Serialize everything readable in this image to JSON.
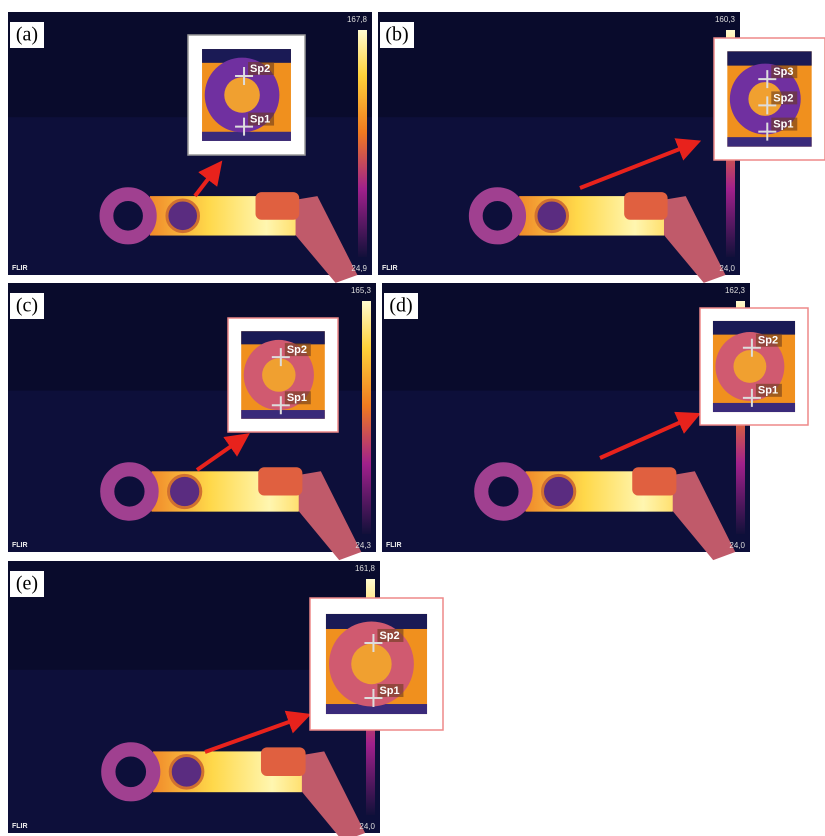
{
  "brand": "FLIR",
  "panels": [
    {
      "label": "(a)",
      "scale_max": "167,8",
      "scale_min": "24,9",
      "spots": [
        "Sp2",
        "Sp1"
      ]
    },
    {
      "label": "(b)",
      "scale_max": "160,3",
      "scale_min": "24,0",
      "spots": [
        "Sp3",
        "Sp2",
        "Sp1"
      ]
    },
    {
      "label": "(c)",
      "scale_max": "165,3",
      "scale_min": "24,3",
      "spots": [
        "Sp2",
        "Sp1"
      ]
    },
    {
      "label": "(d)",
      "scale_max": "162,3",
      "scale_min": "24,0",
      "spots": [
        "Sp2",
        "Sp1"
      ]
    },
    {
      "label": "(e)",
      "scale_max": "161,8",
      "scale_min": "24,0",
      "spots": [
        "Sp2",
        "Sp1"
      ]
    }
  ]
}
